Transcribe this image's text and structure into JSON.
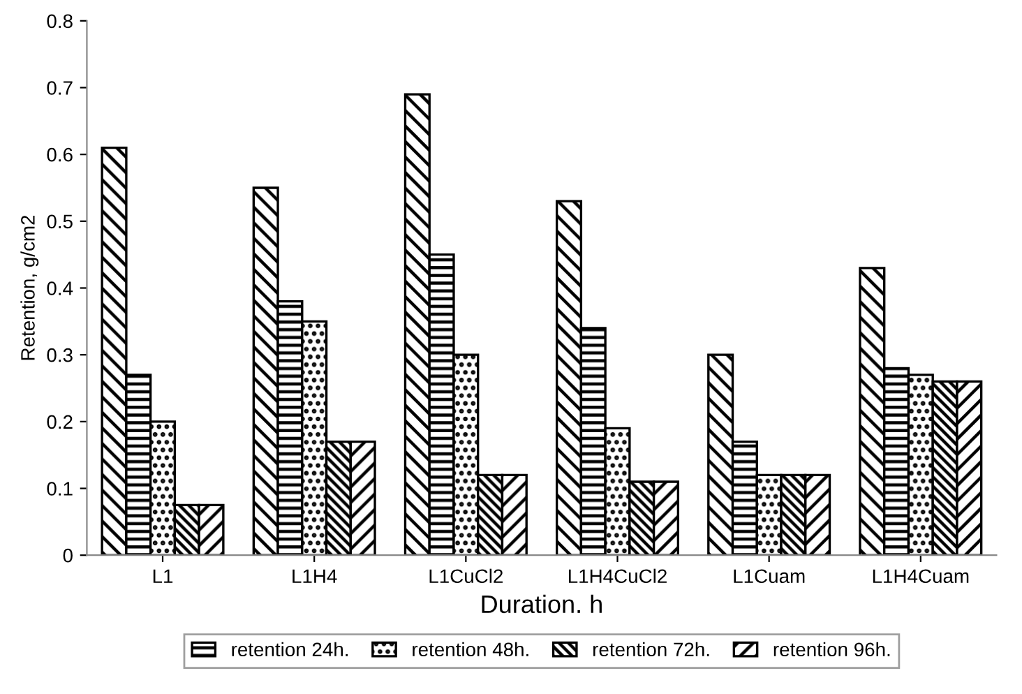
{
  "chart_data": {
    "type": "bar",
    "xlabel": "Duration. h",
    "ylabel": "Retention, g/cm2",
    "categories": [
      "L1",
      "L1H4",
      "L1CuCl2",
      "L1H4CuCl2",
      "L1Cuam",
      "L1H4Cuam"
    ],
    "series": [
      {
        "color": "#000000",
        "values": [
          0.61,
          0.55,
          0.69,
          0.53,
          0.3,
          0.43
        ]
      },
      {
        "name": "retention 24h.",
        "color": "#000000",
        "values": [
          0.27,
          0.38,
          0.45,
          0.34,
          0.17,
          0.28
        ]
      },
      {
        "name": "retention 48h.",
        "color": "#000000",
        "values": [
          0.2,
          0.35,
          0.3,
          0.19,
          0.12,
          0.27
        ]
      },
      {
        "name": "retention 72h.",
        "color": "#000000",
        "values": [
          0.075,
          0.17,
          0.12,
          0.11,
          0.12,
          0.26
        ]
      },
      {
        "name": "retention 96h.",
        "color": "#000000",
        "values": [
          0.075,
          0.17,
          0.12,
          0.11,
          0.12,
          0.26
        ]
      }
    ],
    "ylim": [
      0,
      0.8
    ],
    "yticks": [
      0,
      0.1,
      0.2,
      0.3,
      0.4,
      0.5,
      0.6,
      0.7,
      0.8
    ],
    "grid": false,
    "legend": "bottom"
  }
}
